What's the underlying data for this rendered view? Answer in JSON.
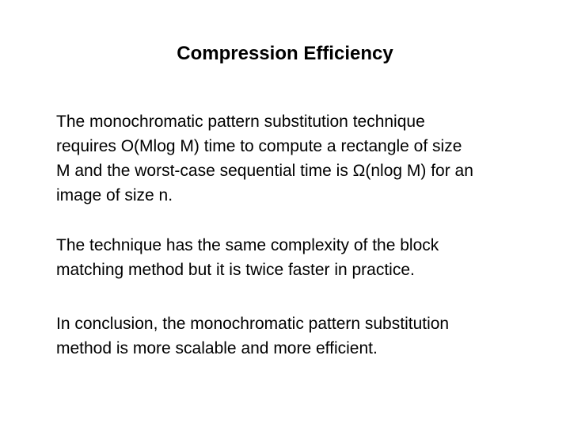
{
  "slide": {
    "title": "Compression Efficiency",
    "paragraphs": [
      {
        "lines": [
          "The monochromatic pattern substitution technique",
          "requires O(Mlog M) time to compute a rectangle of size",
          "M and the worst-case sequential time is Ω(nlog M) for an",
          "image of size n."
        ]
      },
      {
        "lines": [
          "The technique has the same complexity of the block",
          "matching method but it is twice faster in practice."
        ]
      },
      {
        "lines": [
          "In conclusion, the monochromatic pattern substitution",
          "method is more scalable and more efficient."
        ]
      }
    ]
  }
}
